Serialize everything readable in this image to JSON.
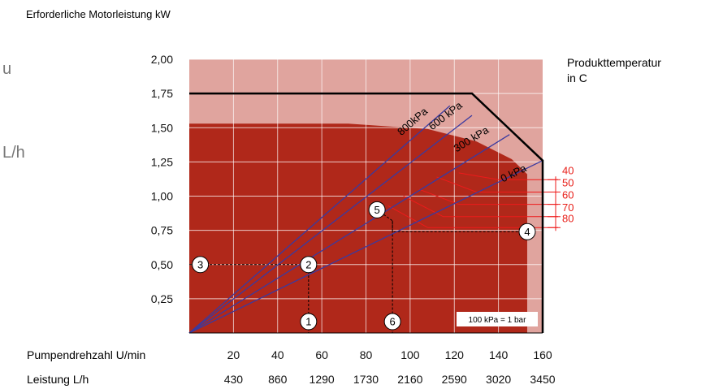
{
  "chart_data": {
    "type": "line",
    "ylabel": "Erforderliche Motorleistung kW",
    "ylim": [
      0,
      2
    ],
    "yticks": [
      "2,00",
      "1,75",
      "1,50",
      "1,25",
      "1,00",
      "0,75",
      "0,50",
      "0,25"
    ],
    "yticks_values": [
      2.0,
      1.75,
      1.5,
      1.25,
      1.0,
      0.75,
      0.5,
      0.25
    ],
    "xlim": [
      0,
      160
    ],
    "xrow1_label": "Pumpendrehzahl U/min",
    "xrow1_ticks": [
      "20",
      "40",
      "60",
      "80",
      "100",
      "120",
      "140",
      "160"
    ],
    "xrow1_values": [
      20,
      40,
      60,
      80,
      100,
      120,
      140,
      160
    ],
    "xrow2_label": "Leistung L/h",
    "xrow2_ticks": [
      "430",
      "860",
      "1290",
      "1730",
      "2160",
      "2590",
      "3020",
      "3450"
    ],
    "legend_title": [
      "Produkttemperatur",
      "in C"
    ],
    "temperatures": [
      "40",
      "50",
      "60",
      "70",
      "80"
    ],
    "temperature_levels": [
      1.12,
      1.03,
      0.94,
      0.85,
      0.77
    ],
    "envelope": {
      "x": [
        0,
        128,
        160
      ],
      "y": [
        1.75,
        1.75,
        1.26
      ]
    },
    "series": [
      {
        "name": "800kPa",
        "x": [
          0,
          118
        ],
        "y": [
          0,
          1.66
        ]
      },
      {
        "name": "600 kPa",
        "x": [
          0,
          128
        ],
        "y": [
          0,
          1.59
        ]
      },
      {
        "name": "300 kPa",
        "x": [
          0,
          145
        ],
        "y": [
          0,
          1.45
        ]
      },
      {
        "name": "0 kPa",
        "x": [
          0,
          160
        ],
        "y": [
          0,
          1.26
        ]
      }
    ],
    "markers": [
      {
        "label": "1",
        "x": 54,
        "y": 0.0
      },
      {
        "label": "2",
        "x": 54,
        "y": 0.5
      },
      {
        "label": "3",
        "x": 5,
        "y": 0.5
      },
      {
        "label": "4",
        "x": 153,
        "y": 0.74
      },
      {
        "label": "5",
        "x": 85,
        "y": 0.9
      },
      {
        "label": "6",
        "x": 92,
        "y": 0.0
      }
    ],
    "example_path_a": {
      "x": [
        0,
        54,
        54
      ],
      "y": [
        0.5,
        0.5,
        0.0
      ]
    },
    "example_path_b": {
      "x": [
        85,
        92,
        92,
        150
      ],
      "y": [
        0.9,
        0.82,
        0.0,
        0.74
      ]
    },
    "note": "100 kPa = 1 bar",
    "left_clip_fragments": [
      "u",
      "L/h"
    ],
    "colors": {
      "dark_region": "#b0281a",
      "light_region": "#e0a49e",
      "pressure_line": "#3a3aa0",
      "temperature_line": "#ee1a1a",
      "legend_text": "#e8201a",
      "frame": "#000000"
    }
  }
}
